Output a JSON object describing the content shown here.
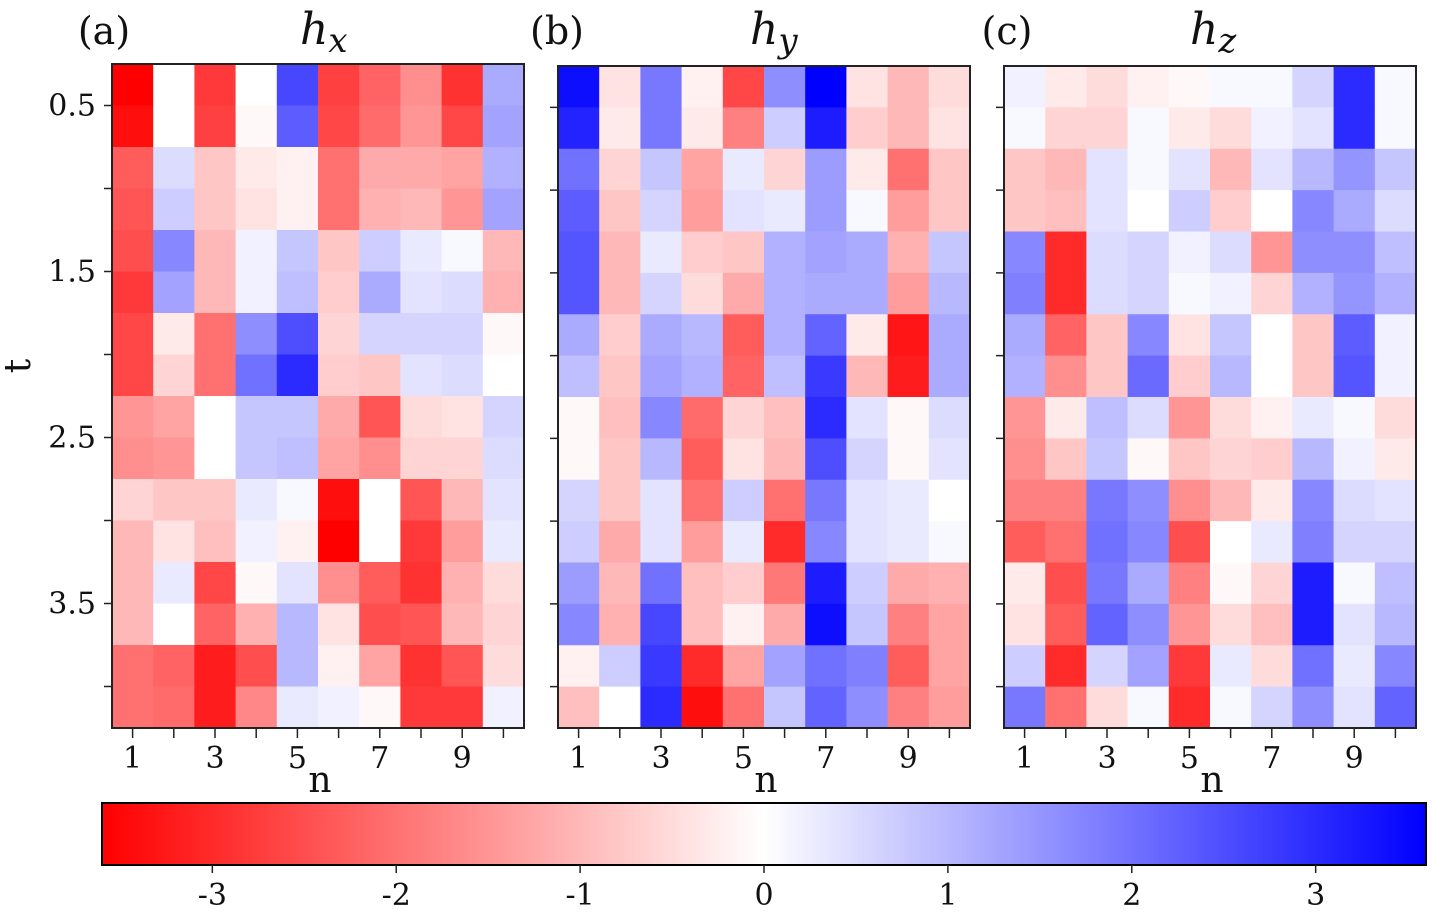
{
  "chart_data": {
    "type": "heatmap",
    "panels": [
      {
        "label": "(a)",
        "title_base": "h",
        "title_sub": "x",
        "xlabel": "n",
        "ylabel": "t",
        "n_range": [
          1,
          10
        ],
        "t_range": [
          0.25,
          4.25
        ],
        "xticks": [
          "1",
          "3",
          "5",
          "7",
          "9"
        ],
        "yticks": [
          "0.5",
          "1.5",
          "2.5",
          "3.5"
        ],
        "values": [
          [
            -3.6,
            0.0,
            -2.8,
            0.0,
            2.6,
            -2.7,
            -2.2,
            -1.6,
            -2.9,
            1.2
          ],
          [
            -3.4,
            0.0,
            -2.7,
            -0.1,
            2.3,
            -2.6,
            -2.1,
            -1.5,
            -2.6,
            1.3
          ],
          [
            -2.3,
            0.5,
            -0.8,
            -0.3,
            -0.2,
            -2.0,
            -1.2,
            -1.2,
            -1.3,
            1.1
          ],
          [
            -2.4,
            0.7,
            -0.8,
            -0.4,
            -0.2,
            -2.0,
            -1.1,
            -1.0,
            -1.5,
            1.3
          ],
          [
            -2.5,
            1.7,
            -1.0,
            0.2,
            0.8,
            -0.8,
            0.7,
            0.3,
            0.1,
            -1.0
          ],
          [
            -2.8,
            1.3,
            -1.0,
            0.2,
            0.9,
            -0.7,
            1.2,
            0.4,
            0.5,
            -1.1
          ],
          [
            -2.6,
            -0.3,
            -2.0,
            1.6,
            2.5,
            -0.6,
            0.6,
            0.6,
            0.6,
            -0.1
          ],
          [
            -2.6,
            -0.6,
            -2.0,
            2.0,
            3.0,
            -0.7,
            -0.8,
            0.4,
            0.5,
            0.0
          ],
          [
            -1.5,
            -1.3,
            0.0,
            0.8,
            0.8,
            -1.2,
            -2.4,
            -0.5,
            -0.4,
            0.6
          ],
          [
            -1.6,
            -1.5,
            0.0,
            0.8,
            0.9,
            -1.3,
            -1.6,
            -0.6,
            -0.6,
            0.5
          ],
          [
            -0.6,
            -0.8,
            -0.8,
            0.3,
            0.1,
            -3.4,
            0.0,
            -2.4,
            -1.0,
            0.4
          ],
          [
            -1.0,
            -0.4,
            -0.9,
            0.2,
            -0.2,
            -3.6,
            0.0,
            -2.8,
            -1.4,
            0.3
          ],
          [
            -1.0,
            0.3,
            -2.6,
            -0.1,
            0.4,
            -1.6,
            -2.3,
            -2.9,
            -1.1,
            -0.5
          ],
          [
            -1.0,
            0.0,
            -2.2,
            -1.1,
            1.0,
            -0.4,
            -2.5,
            -2.4,
            -1.0,
            -0.6
          ],
          [
            -2.0,
            -2.2,
            -3.2,
            -2.5,
            1.0,
            -0.2,
            -1.3,
            -2.9,
            -2.4,
            -0.5
          ],
          [
            -2.0,
            -2.1,
            -3.2,
            -1.7,
            0.3,
            0.2,
            -0.1,
            -2.8,
            -2.8,
            0.2
          ]
        ]
      },
      {
        "label": "(b)",
        "title_base": "h",
        "title_sub": "y",
        "xlabel": "n",
        "ylabel": "",
        "n_range": [
          1,
          10
        ],
        "t_range": [
          0.25,
          4.25
        ],
        "xticks": [
          "1",
          "3",
          "5",
          "7",
          "9"
        ],
        "yticks": [],
        "values": [
          [
            3.4,
            -0.4,
            1.9,
            -0.2,
            -2.6,
            1.6,
            3.6,
            -0.4,
            -1.0,
            -0.5
          ],
          [
            3.1,
            -0.3,
            1.9,
            -0.3,
            -1.8,
            0.7,
            3.2,
            -0.7,
            -1.0,
            -0.4
          ],
          [
            2.0,
            -0.6,
            0.8,
            -1.3,
            0.3,
            -0.6,
            1.4,
            -0.3,
            -2.0,
            -0.8
          ],
          [
            2.3,
            -0.8,
            0.6,
            -1.4,
            0.4,
            0.3,
            1.4,
            0.1,
            -1.4,
            -0.8
          ],
          [
            2.4,
            -1.0,
            0.3,
            -0.7,
            -0.8,
            1.1,
            1.3,
            1.2,
            -1.1,
            0.8
          ],
          [
            2.4,
            -1.0,
            0.6,
            -0.5,
            -1.2,
            1.1,
            1.2,
            1.2,
            -1.4,
            1.0
          ],
          [
            1.2,
            -0.7,
            1.2,
            1.0,
            -2.3,
            1.1,
            2.2,
            -0.3,
            -3.3,
            1.2
          ],
          [
            0.9,
            -0.8,
            1.3,
            1.1,
            -2.2,
            0.9,
            2.8,
            -1.0,
            -3.2,
            1.2
          ],
          [
            -0.1,
            -0.9,
            1.7,
            -2.1,
            -0.6,
            -0.9,
            3.0,
            0.4,
            -0.1,
            0.5
          ],
          [
            -0.1,
            -0.8,
            1.0,
            -2.3,
            -0.4,
            -1.0,
            2.5,
            0.6,
            -0.1,
            0.4
          ],
          [
            0.6,
            -0.8,
            0.4,
            -2.0,
            0.7,
            -2.0,
            1.9,
            0.4,
            0.3,
            0.0
          ],
          [
            0.7,
            -1.2,
            0.4,
            -1.4,
            0.3,
            -3.0,
            1.7,
            0.4,
            0.3,
            0.1
          ],
          [
            1.4,
            -1.0,
            2.0,
            -0.9,
            -0.7,
            -1.9,
            3.2,
            0.7,
            -1.2,
            -1.1
          ],
          [
            1.7,
            -1.1,
            2.6,
            -0.9,
            -0.2,
            -1.2,
            3.4,
            0.8,
            -1.8,
            -1.3
          ],
          [
            -0.2,
            0.7,
            2.8,
            -3.0,
            -1.3,
            1.3,
            2.0,
            1.8,
            -2.3,
            -1.3
          ],
          [
            -0.9,
            0.0,
            3.0,
            -3.4,
            -2.0,
            0.8,
            2.2,
            1.6,
            -1.8,
            -1.4
          ]
        ]
      },
      {
        "label": "(c)",
        "title_base": "h",
        "title_sub": "z",
        "xlabel": "n",
        "ylabel": "",
        "n_range": [
          1,
          10
        ],
        "t_range": [
          0.25,
          4.25
        ],
        "xticks": [
          "1",
          "3",
          "5",
          "7",
          "9"
        ],
        "yticks": [],
        "values": [
          [
            0.2,
            -0.3,
            -0.5,
            -0.2,
            -0.1,
            0.1,
            0.1,
            0.6,
            3.0,
            0.1
          ],
          [
            0.1,
            -0.6,
            -0.6,
            0.1,
            -0.3,
            -0.5,
            0.2,
            0.4,
            3.0,
            0.1
          ],
          [
            -0.8,
            -1.0,
            0.4,
            0.1,
            0.4,
            -1.0,
            0.4,
            1.0,
            1.5,
            0.8
          ],
          [
            -0.8,
            -0.9,
            0.4,
            0.0,
            0.7,
            -0.7,
            0.0,
            1.7,
            1.2,
            0.5
          ],
          [
            1.7,
            -3.0,
            0.5,
            0.6,
            0.2,
            0.5,
            -1.5,
            1.6,
            1.6,
            0.9
          ],
          [
            1.8,
            -3.0,
            0.5,
            0.6,
            0.1,
            0.2,
            -0.6,
            1.1,
            1.5,
            1.1
          ],
          [
            1.2,
            -2.2,
            -0.8,
            1.7,
            -0.4,
            0.8,
            0.0,
            -0.8,
            2.3,
            0.2
          ],
          [
            1.1,
            -1.6,
            -0.8,
            2.1,
            -0.7,
            1.0,
            0.0,
            -0.8,
            2.4,
            0.2
          ],
          [
            -1.5,
            -0.3,
            0.9,
            0.5,
            -1.5,
            -0.5,
            -0.2,
            0.3,
            0.1,
            -0.5
          ],
          [
            -1.6,
            -0.8,
            0.8,
            -0.1,
            -0.8,
            -0.6,
            -0.7,
            1.0,
            0.2,
            -0.3
          ],
          [
            -1.8,
            -1.8,
            1.9,
            1.6,
            -1.6,
            -1.0,
            -0.3,
            1.7,
            0.5,
            0.4
          ],
          [
            -2.3,
            -2.0,
            2.0,
            1.7,
            -2.5,
            0.0,
            0.3,
            1.8,
            0.6,
            0.6
          ],
          [
            -0.3,
            -2.5,
            1.9,
            1.2,
            -1.8,
            -0.1,
            -0.6,
            3.2,
            0.1,
            0.9
          ],
          [
            -0.4,
            -2.3,
            2.2,
            1.6,
            -1.5,
            -0.5,
            -0.9,
            3.2,
            0.4,
            1.0
          ],
          [
            0.7,
            -3.0,
            0.6,
            1.3,
            -2.8,
            0.3,
            -0.5,
            2.0,
            0.3,
            1.7
          ],
          [
            1.9,
            -2.0,
            -0.5,
            0.1,
            -3.0,
            0.1,
            0.6,
            1.6,
            0.4,
            2.2
          ]
        ]
      }
    ],
    "colorbar": {
      "colormap": "bwr",
      "vmin": -3.6,
      "vmax": 3.6,
      "ticks": [
        {
          "value": -3,
          "label": "-3"
        },
        {
          "value": -2,
          "label": "-2"
        },
        {
          "value": -1,
          "label": "-1"
        },
        {
          "value": 0,
          "label": "0"
        },
        {
          "value": 1,
          "label": "1"
        },
        {
          "value": 2,
          "label": "2"
        },
        {
          "value": 3,
          "label": "3"
        }
      ],
      "colors": {
        "low": "#ff0000",
        "mid": "#ffffff",
        "high": "#0000ff"
      }
    }
  }
}
